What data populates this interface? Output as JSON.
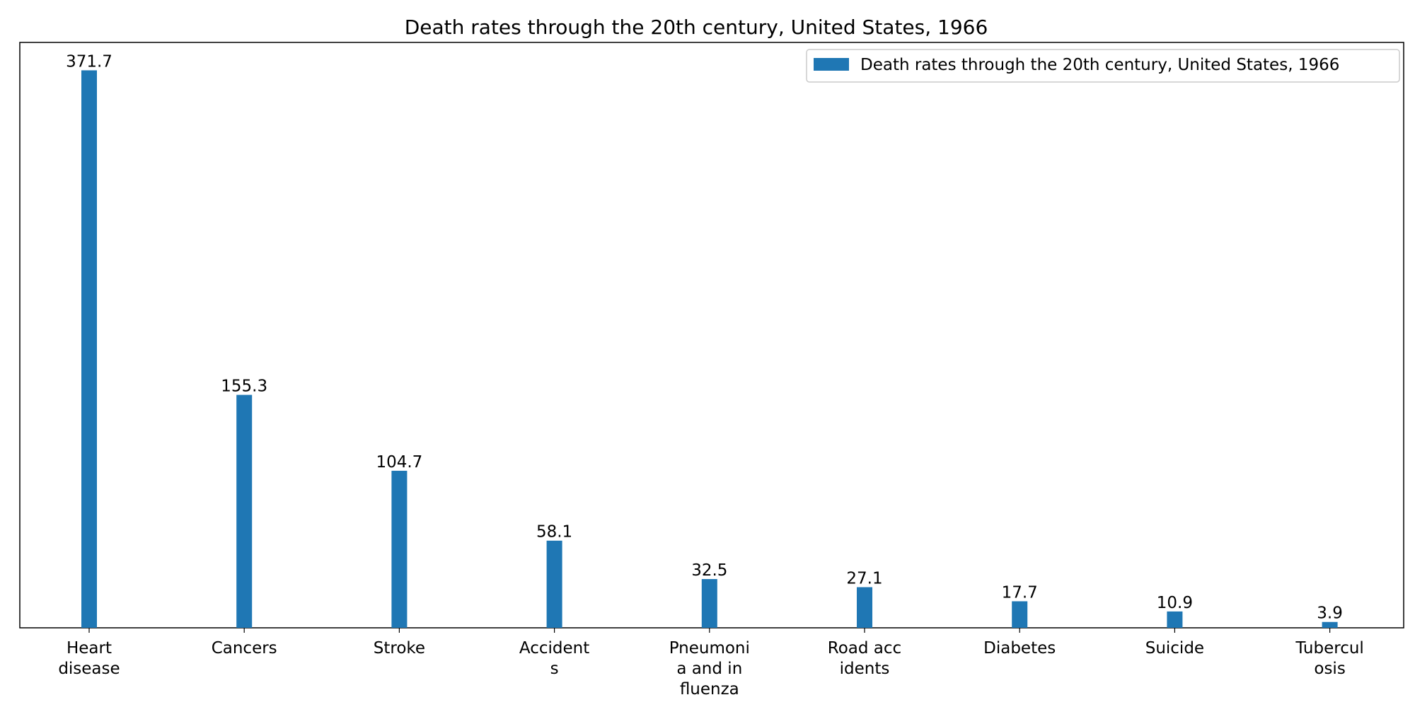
{
  "chart_data": {
    "type": "bar",
    "title": "Death rates through the 20th century, United States, 1966",
    "xlabel": "",
    "ylabel": "",
    "categories": [
      [
        "Heart",
        "disease"
      ],
      [
        "Cancers"
      ],
      [
        "Stroke"
      ],
      [
        "Accident",
        "s"
      ],
      [
        "Pneumoni",
        "a and in",
        "fluenza"
      ],
      [
        "Road acc",
        "idents"
      ],
      [
        "Diabetes"
      ],
      [
        "Suicide"
      ],
      [
        "Tubercul",
        "osis"
      ]
    ],
    "series": [
      {
        "name": "Death rates through the 20th century, United States, 1966",
        "values": [
          371.7,
          155.3,
          104.7,
          58.1,
          32.5,
          27.1,
          17.7,
          10.9,
          3.9
        ],
        "labels": [
          "371.7",
          "155.3",
          "104.7",
          "58.1",
          "32.5",
          "27.1",
          "17.7",
          "10.9",
          "3.9"
        ]
      }
    ],
    "ylim": [
      0,
      390.3
    ],
    "yaxis_visible": false,
    "grid": false,
    "legend_position": "top-right",
    "colors": {
      "bar": "#1f77b4",
      "axis": "#000000",
      "legend_border": "#cccccc"
    }
  }
}
